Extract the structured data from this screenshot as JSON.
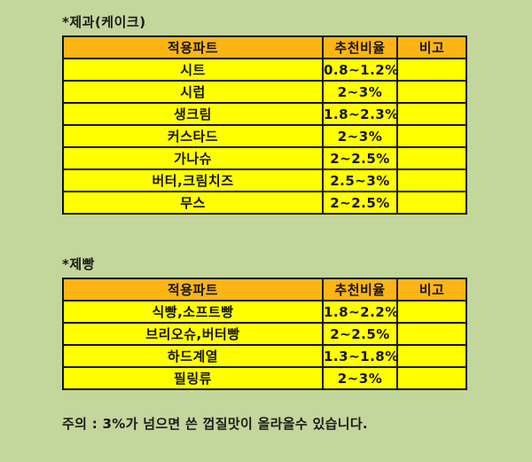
{
  "colors": {
    "background": "#c3d69b",
    "header_fill": "#fdb515",
    "cell_fill": "#ffff00",
    "border": "#141414",
    "text": "#1a1a1a"
  },
  "cake_section": {
    "title": "*제과(케이크)",
    "headers": {
      "part": "적용파트",
      "ratio": "추천비율",
      "note": "비고"
    },
    "rows": [
      {
        "part": "시트",
        "ratio": "0.8~1.2%",
        "note": ""
      },
      {
        "part": "시럽",
        "ratio": "2~3%",
        "note": ""
      },
      {
        "part": "생크림",
        "ratio": "1.8~2.3%",
        "note": ""
      },
      {
        "part": "커스타드",
        "ratio": "2~3%",
        "note": ""
      },
      {
        "part": "가나슈",
        "ratio": "2~2.5%",
        "note": ""
      },
      {
        "part": "버터,크림치즈",
        "ratio": "2.5~3%",
        "note": ""
      },
      {
        "part": "무스",
        "ratio": "2~2.5%",
        "note": ""
      }
    ]
  },
  "bread_section": {
    "title": "*제빵",
    "headers": {
      "part": "적용파트",
      "ratio": "추천비율",
      "note": "비고"
    },
    "rows": [
      {
        "part": "식빵,소프트빵",
        "ratio": "1.8~2.2%",
        "note": ""
      },
      {
        "part": "브리오슈,버터빵",
        "ratio": "2~2.5%",
        "note": ""
      },
      {
        "part": "하드계열",
        "ratio": "1.3~1.8%",
        "note": ""
      },
      {
        "part": "필링류",
        "ratio": "2~3%",
        "note": ""
      }
    ]
  },
  "footer": {
    "caution": "주의 : 3%가 넘으면 쓴 껍질맛이 올라올수 있습니다."
  }
}
